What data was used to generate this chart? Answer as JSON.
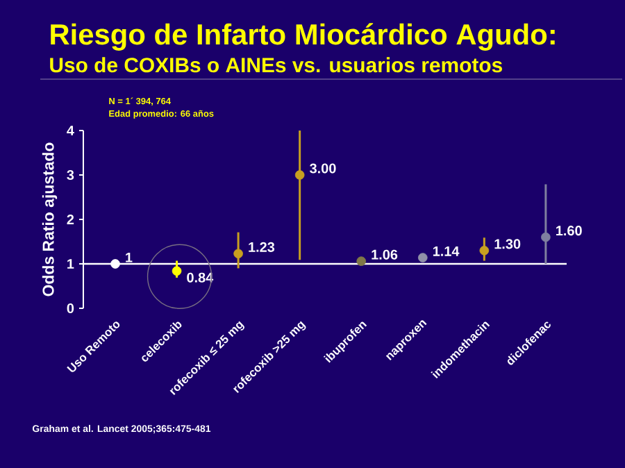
{
  "chart_data": {
    "type": "scatter",
    "title": "Riesgo de Infarto Miocárdico Agudo:",
    "subtitle": "Uso de COXIBs o AINEs vs. usuarios remotos",
    "ylabel": "Odds Ratio ajustado",
    "categories": [
      "Uso Remoto",
      "celecoxib",
      "rofecoxib ≤ 25 mg",
      "rofecoxib >25 mg",
      "ibuprofen",
      "naproxen",
      "indomethacin",
      "diclofenac"
    ],
    "values": [
      1,
      0.84,
      1.23,
      3.0,
      1.06,
      1.14,
      1.3,
      1.6
    ],
    "value_labels": [
      "1",
      "0.84",
      "1.23",
      "3.00",
      "1.06",
      "1.14",
      "1.30",
      "1.60"
    ],
    "errors": [
      null,
      [
        0.69,
        1.07
      ],
      [
        0.9,
        1.71
      ],
      [
        1.09,
        4.0
      ],
      null,
      null,
      [
        1.07,
        1.59
      ],
      [
        1.0,
        2.79
      ]
    ],
    "colors": [
      "#ffffff",
      "#ffff00",
      "#c8a020",
      "#c8a020",
      "#807848",
      "#9090a8",
      "#c8a020",
      "#8080a0"
    ],
    "ylim": [
      0,
      4
    ],
    "yticks": [
      0,
      1,
      2,
      3,
      4
    ],
    "marker": "circle",
    "grid": false,
    "ref_lines": [
      {
        "axis": "y",
        "value": 1,
        "color": "#ffffff"
      }
    ],
    "annotations": [
      "N = 1´ 394, 764",
      "Edad promedio: 66 años",
      "Graham et al. Lancet 2005;365:475-481"
    ]
  }
}
